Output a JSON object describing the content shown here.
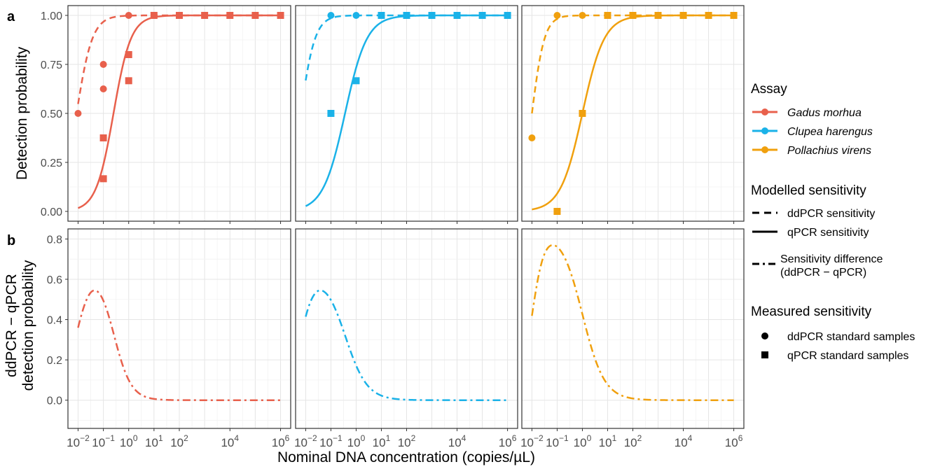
{
  "figure": {
    "panel_labels": [
      "a",
      "b"
    ],
    "xlabel": "Nominal DNA concentration (copies/µL)",
    "ylabel_a": "Detection probability",
    "ylabel_b": [
      "ddPCR − qPCR",
      "detection probability"
    ],
    "colors": {
      "Gadus morhua": "#E8604C",
      "Clupea harengus": "#1AB2E8",
      "Pollachius virens": "#F0A00E"
    }
  },
  "legend": {
    "assay_title": "Assay",
    "assay_items": [
      "Gadus morhua",
      "Clupea harengus",
      "Pollachius virens"
    ],
    "modelled_title": "Modelled sensitivity",
    "modelled_items": [
      "ddPCR sensitivity",
      "qPCR sensitivity"
    ],
    "difference_label": [
      "Sensitivity difference",
      "(ddPCR − qPCR)"
    ],
    "measured_title": "Measured sensitivity",
    "measured_items": [
      "ddPCR standard samples",
      "qPCR standard samples"
    ]
  },
  "chart_data": [
    {
      "type": "scatter",
      "panel": "a",
      "xscale": "log10",
      "xlim_log10": [
        -2.4,
        6.4
      ],
      "x_tick_labels": [
        "10^-2",
        "10^-1",
        "10^0",
        "10^1",
        "10^2",
        "10^4",
        "10^6"
      ],
      "x_tick_exponents": [
        -2,
        -1,
        0,
        1,
        2,
        4,
        6
      ],
      "ylim": [
        -0.05,
        1.05
      ],
      "y_ticks": [
        0.0,
        0.25,
        0.5,
        0.75,
        1.0
      ],
      "y_tick_labels": [
        "0.00",
        "0.25",
        "0.50",
        "0.75",
        "1.00"
      ],
      "grid": true,
      "facets": [
        {
          "species": "Gadus morhua",
          "ddPCR_points": [
            [
              0.01,
              0.5
            ],
            [
              0.1,
              0.625
            ],
            [
              0.1,
              0.75
            ],
            [
              1,
              1.0
            ]
          ],
          "qPCR_points": [
            [
              0.1,
              0.1667
            ],
            [
              0.1,
              0.375
            ],
            [
              1,
              0.6667
            ],
            [
              1,
              0.8
            ],
            [
              10,
              1.0
            ],
            [
              100,
              1.0
            ],
            [
              1000,
              1.0
            ],
            [
              10000,
              1.0
            ],
            [
              100000,
              1.0
            ],
            [
              1000000,
              1.0
            ]
          ],
          "ddPCR_model": {
            "logistic_log10": {
              "midpoint": -2.06,
              "slope": 3.2
            }
          },
          "qPCR_model": {
            "logistic_log10": {
              "midpoint": -0.6,
              "slope": 2.9
            }
          }
        },
        {
          "species": "Clupea harengus",
          "ddPCR_points": [
            [
              0.1,
              1.0
            ],
            [
              1,
              1.0
            ]
          ],
          "qPCR_points": [
            [
              0.1,
              0.5
            ],
            [
              1,
              0.6667
            ],
            [
              10,
              1.0
            ],
            [
              100,
              1.0
            ],
            [
              1000,
              1.0
            ],
            [
              10000,
              1.0
            ],
            [
              100000,
              1.0
            ],
            [
              1000000,
              1.0
            ]
          ],
          "ddPCR_model": {
            "logistic_log10": {
              "midpoint": -2.2,
              "slope": 3.5
            }
          },
          "qPCR_model": {
            "logistic_log10": {
              "midpoint": -0.44,
              "slope": 2.3
            }
          }
        },
        {
          "species": "Pollachius virens",
          "ddPCR_points": [
            [
              0.01,
              0.375
            ],
            [
              0.1,
              1.0
            ],
            [
              1,
              1.0
            ]
          ],
          "qPCR_points": [
            [
              0.1,
              0.0
            ],
            [
              1,
              0.5
            ],
            [
              10,
              1.0
            ],
            [
              100,
              1.0
            ],
            [
              1000,
              1.0
            ],
            [
              10000,
              1.0
            ],
            [
              100000,
              1.0
            ],
            [
              1000000,
              1.0
            ]
          ],
          "ddPCR_model": {
            "logistic_log10": {
              "midpoint": -2.0,
              "slope": 4.0
            }
          },
          "qPCR_model": {
            "logistic_log10": {
              "midpoint": 0.0,
              "slope": 2.3
            }
          }
        }
      ]
    },
    {
      "type": "line",
      "panel": "b",
      "series_kind": "ddPCR − qPCR sensitivity difference",
      "xscale": "log10",
      "xlim_log10": [
        -2.4,
        6.4
      ],
      "ylim": [
        -0.14,
        0.85
      ],
      "y_ticks": [
        0.0,
        0.2,
        0.4,
        0.6,
        0.8
      ],
      "y_tick_labels": [
        "0.0",
        "0.2",
        "0.4",
        "0.6",
        "0.8"
      ],
      "grid": true,
      "facets": [
        {
          "species": "Gadus morhua",
          "peak": [
            0.05,
            0.545
          ]
        },
        {
          "species": "Clupea harengus",
          "peak": [
            0.04,
            0.545
          ]
        },
        {
          "species": "Pollachius virens",
          "peak": [
            0.1,
            0.77
          ]
        }
      ]
    }
  ]
}
